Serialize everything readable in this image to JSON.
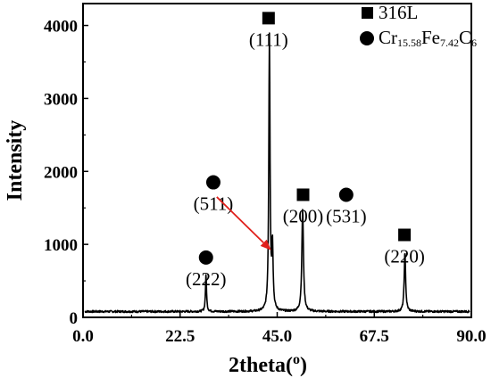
{
  "chart_data": {
    "type": "line",
    "xlabel": "2theta",
    "xlabel_unit": "o",
    "ylabel": "Intensity",
    "xlim": [
      0,
      90
    ],
    "ylim": [
      0,
      4300
    ],
    "x_ticks": [
      "0.0",
      "22.5",
      "45.0",
      "67.5",
      "90.0"
    ],
    "y_ticks": [
      "0",
      "1000",
      "2000",
      "3000",
      "4000"
    ],
    "grid": false,
    "legend_position": "top-right",
    "legend": [
      {
        "marker": "square",
        "name": "316L"
      },
      {
        "marker": "circle",
        "name_parts": [
          "Cr",
          "15.58",
          "Fe",
          "7.42",
          "C",
          "6"
        ]
      }
    ],
    "series": [
      {
        "baseline": 80,
        "peaks": [
          {
            "x": 28.5,
            "y": 580,
            "w": 0.15
          },
          {
            "x": 43.2,
            "y": 3850,
            "w": 0.17
          },
          {
            "x": 43.9,
            "y": 950,
            "w": 0.18
          },
          {
            "x": 50.9,
            "y": 1490,
            "w": 0.22
          },
          {
            "x": 74.6,
            "y": 890,
            "w": 0.2
          }
        ]
      }
    ],
    "annotations": [
      {
        "label": "(111)",
        "marker": "square",
        "x": 43.0,
        "y": 4100
      },
      {
        "label": "(200)",
        "marker": "square",
        "x": 51.0,
        "y": 1680
      },
      {
        "label": "(220)",
        "marker": "square",
        "x": 74.5,
        "y": 1130
      },
      {
        "label": "(222)",
        "marker": "circle",
        "x": 28.5,
        "y": 820
      },
      {
        "label": "(511)",
        "marker": "circle",
        "x": 30.2,
        "y": 1850
      },
      {
        "label": "(531)",
        "marker": "circle",
        "x": 61.0,
        "y": 1680
      }
    ],
    "arrow": {
      "color": "#e0201c",
      "from": [
        31.0,
        1650
      ],
      "to": [
        43.6,
        920
      ]
    }
  }
}
